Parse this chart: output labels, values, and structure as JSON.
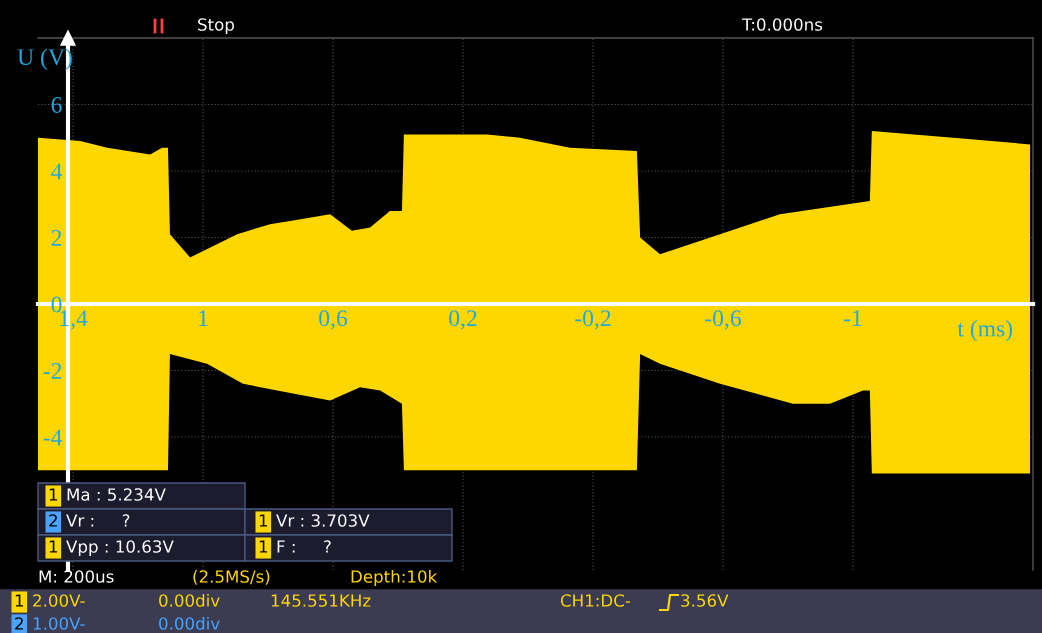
{
  "chart_data": {
    "type": "area",
    "xlabel": "t (ms)",
    "ylabel": "U (V)",
    "xlim": [
      1.508,
      -1.554
    ],
    "ylim": [
      -8,
      8
    ],
    "xticks": [
      {
        "value": 1.4,
        "label": "1,4"
      },
      {
        "value": 1,
        "label": "1"
      },
      {
        "value": 0.6,
        "label": "0,6"
      },
      {
        "value": 0.2,
        "label": "0,2"
      },
      {
        "value": -0.2,
        "label": "-0,2"
      },
      {
        "value": -0.6,
        "label": "-0,6"
      },
      {
        "value": -1,
        "label": "-1"
      }
    ],
    "yticks": [
      {
        "value": -4,
        "label": "-4"
      },
      {
        "value": -2,
        "label": "-2"
      },
      0,
      2,
      4,
      6
    ],
    "grid": true,
    "series": [
      {
        "color": "#ffd700",
        "x": [
          1.508,
          1.378,
          1.295,
          1.163,
          1.126,
          1.108,
          1.102,
          1.04,
          0.895,
          0.794,
          0.732,
          0.609,
          0.542,
          0.486,
          0.425,
          0.388,
          0.382,
          0.126,
          0.025,
          -0.129,
          -0.335,
          -0.345,
          -0.406,
          -0.591,
          -0.775,
          -1.052,
          -1.058,
          -1.308,
          -1.545
        ],
        "values": [
          5.0,
          4.9,
          4.7,
          4.5,
          4.7,
          4.7,
          2.1,
          1.4,
          2.1,
          2.4,
          2.5,
          2.7,
          2.2,
          2.3,
          2.8,
          2.8,
          5.1,
          5.1,
          5.0,
          4.7,
          4.6,
          2.0,
          1.5,
          2.1,
          2.7,
          3.1,
          5.2,
          5.0,
          4.8
        ]
      },
      {
        "color": "#ffd700",
        "x": [
          1.508,
          1.108,
          1.102,
          0.988,
          0.877,
          0.772,
          0.609,
          0.517,
          0.455,
          0.388,
          0.382,
          -0.335,
          -0.345,
          -0.406,
          -0.591,
          -0.815,
          -0.929,
          -1.031,
          -1.052,
          -1.058,
          -1.545
        ],
        "values": [
          -5.0,
          -5.0,
          -1.5,
          -1.8,
          -2.4,
          -2.6,
          -2.9,
          -2.5,
          -2.6,
          -3.0,
          -5.0,
          -5.0,
          -1.5,
          -1.8,
          -2.4,
          -3.0,
          -3.0,
          -2.6,
          -2.6,
          -5.1,
          -5.1
        ]
      }
    ],
    "annotations": [
      "Stop",
      "T:0.000ns",
      "1",
      "Ma : 5.234V",
      "2",
      "Vr :     ?",
      "1",
      "Vr : 3.703V",
      "1",
      "Vpp : 10.63V",
      "1",
      "F :     ?",
      "M: 200us",
      "(2.5MS/s)",
      "Depth:10k",
      "1",
      "2.00V-",
      "0.00div",
      "145.551KHz",
      "CH1:DC-",
      "3.56V",
      "2",
      "1.00V-",
      "0.00div"
    ]
  }
}
